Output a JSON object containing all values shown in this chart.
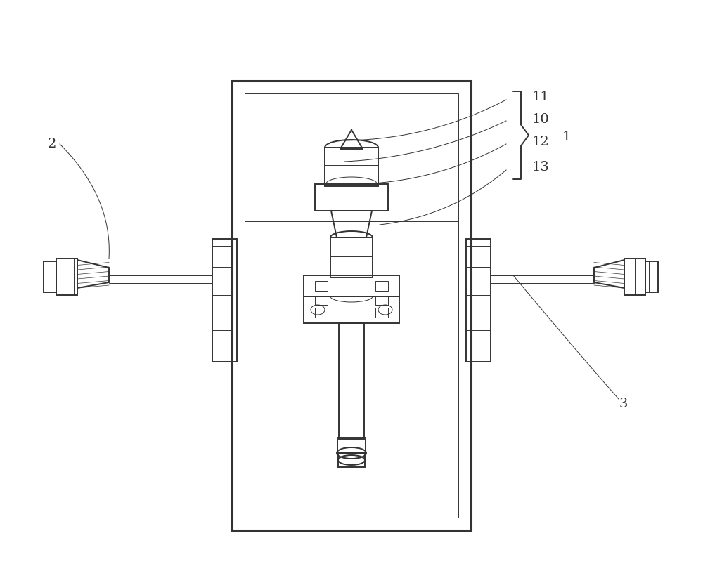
{
  "bg_color": "#ffffff",
  "line_color": "#333333",
  "lw": 1.4,
  "lw_thin": 0.7,
  "lw_thick": 2.2,
  "figsize": [
    10.0,
    8.1
  ]
}
